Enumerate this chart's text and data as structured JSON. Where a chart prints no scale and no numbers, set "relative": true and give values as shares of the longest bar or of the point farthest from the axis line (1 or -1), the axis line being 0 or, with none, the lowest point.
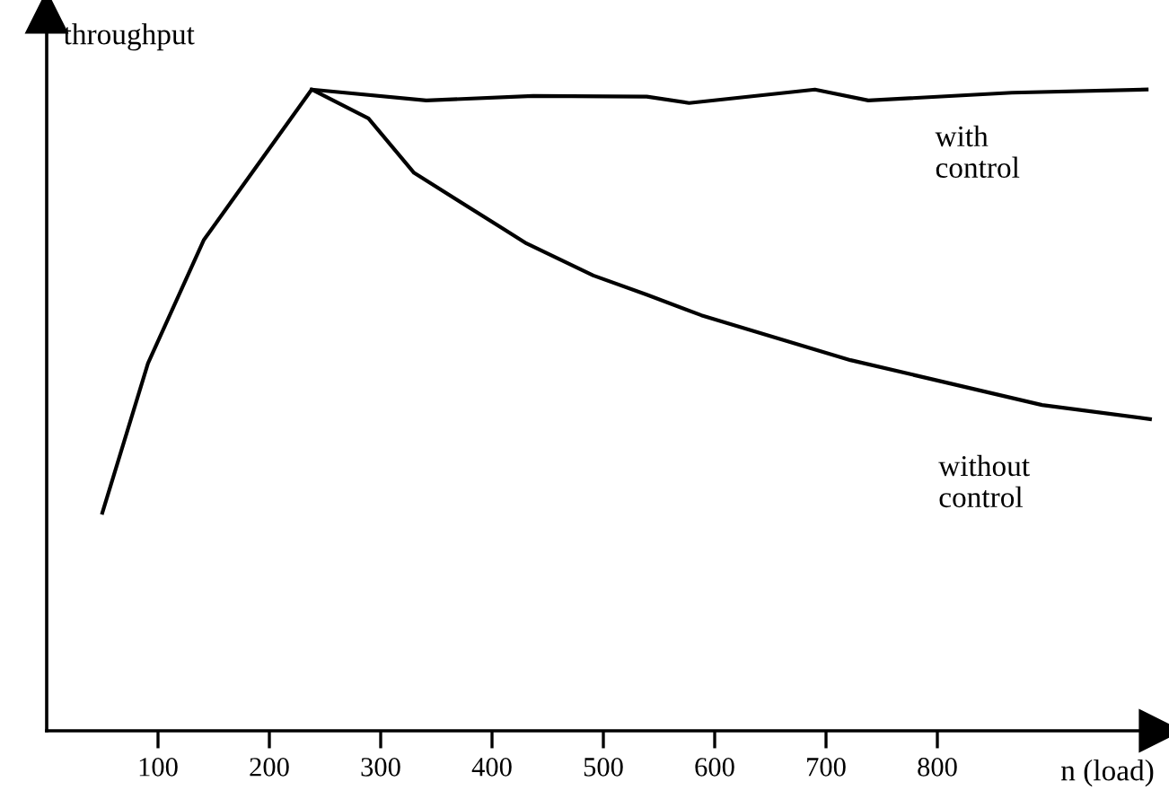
{
  "chart_data": {
    "type": "line",
    "relative": true,
    "xlabel": "n (load)",
    "ylabel": "throughput",
    "xlim": [
      0,
      1000
    ],
    "xticks": [
      100,
      200,
      300,
      400,
      500,
      600,
      700,
      800
    ],
    "grid": false,
    "legend": false,
    "marker": "none",
    "line_style": "solid",
    "series": [
      {
        "name": "with control",
        "color": "#000000",
        "x": [
          238,
          341,
          437,
          539,
          577,
          690,
          738,
          867,
          988
        ],
        "values": [
          1.0,
          0.983,
          0.99,
          0.989,
          0.979,
          1.0,
          0.983,
          0.995,
          1.0
        ]
      },
      {
        "name": "without control",
        "color": "#000000",
        "x": [
          50,
          91,
          141,
          238,
          289,
          330,
          431,
          491,
          539,
          588,
          722,
          894,
          991
        ],
        "values": [
          0.34,
          0.573,
          0.765,
          1.0,
          0.955,
          0.87,
          0.76,
          0.71,
          0.68,
          0.648,
          0.578,
          0.508,
          0.486
        ]
      }
    ]
  }
}
